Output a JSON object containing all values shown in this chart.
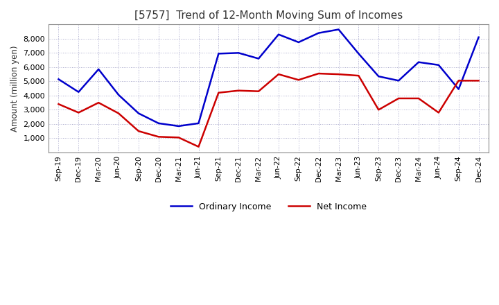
{
  "title": "[5757]  Trend of 12-Month Moving Sum of Incomes",
  "ylabel": "Amount (million yen)",
  "ylim": [
    0,
    9000
  ],
  "yticks": [
    1000,
    2000,
    3000,
    4000,
    5000,
    6000,
    7000,
    8000
  ],
  "ordinary_income_color": "#0000cc",
  "net_income_color": "#cc0000",
  "line_width": 1.8,
  "background_color": "#ffffff",
  "plot_bg_color": "#ffffff",
  "grid_color": "#aaaacc",
  "x_labels": [
    "Sep-19",
    "Dec-19",
    "Mar-20",
    "Jun-20",
    "Sep-20",
    "Dec-20",
    "Mar-21",
    "Jun-21",
    "Sep-21",
    "Dec-21",
    "Mar-22",
    "Jun-22",
    "Sep-22",
    "Dec-22",
    "Mar-23",
    "Jun-23",
    "Sep-23",
    "Dec-23",
    "Mar-24",
    "Jun-24",
    "Sep-24",
    "Dec-24"
  ],
  "ordinary_income": [
    5150,
    4250,
    5850,
    4050,
    2750,
    2050,
    1850,
    2050,
    6950,
    7000,
    6600,
    8300,
    7750,
    8400,
    8650,
    6950,
    5350,
    5050,
    6350,
    6150,
    4450,
    8100
  ],
  "net_income": [
    3400,
    2800,
    3500,
    2750,
    1500,
    1100,
    1050,
    400,
    4200,
    4350,
    4300,
    5500,
    5100,
    5550,
    5500,
    5400,
    3000,
    3800,
    3800,
    2800,
    5050,
    5050
  ]
}
